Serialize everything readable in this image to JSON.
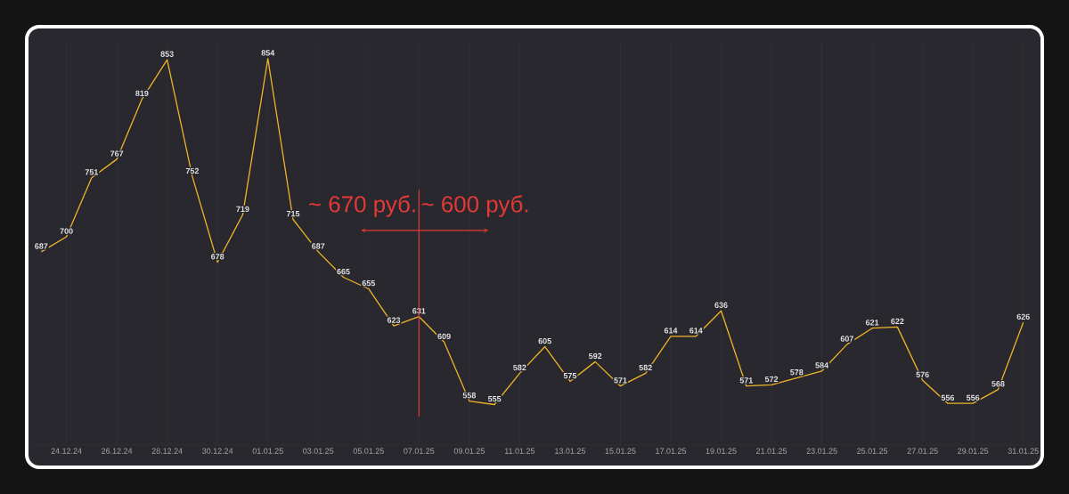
{
  "chart_data": {
    "type": "line",
    "categories": [
      null,
      "24.12.24",
      null,
      "26.12.24",
      null,
      "28.12.24",
      null,
      "30.12.24",
      null,
      "01.01.25",
      null,
      "03.01.25",
      null,
      "05.01.25",
      null,
      "07.01.25",
      null,
      "09.01.25",
      null,
      "11.01.25",
      null,
      "13.01.25",
      null,
      "15.01.25",
      null,
      "17.01.25",
      null,
      "19.01.25",
      null,
      "21.01.25",
      null,
      "23.01.25",
      null,
      "25.01.25",
      null,
      "27.01.25",
      null,
      "29.01.25",
      null,
      "31.01.25"
    ],
    "series": [
      {
        "color": "#f0b429",
        "values": [
          687,
          700,
          751,
          767,
          819,
          853,
          752,
          678,
          719,
          854,
          715,
          687,
          665,
          655,
          623,
          631,
          609,
          558,
          555,
          582,
          605,
          575,
          592,
          571,
          582,
          614,
          614,
          636,
          571,
          572,
          578,
          584,
          607,
          621,
          622,
          576,
          556,
          556,
          568,
          626
        ]
      }
    ],
    "ylim": [
      520,
      870
    ],
    "tick_labels": "x",
    "grid": true,
    "data_labels": true,
    "ref_lines": [
      {
        "axis": "x",
        "value": "07.01.25",
        "color": "#e53935"
      }
    ],
    "annotations": [
      "~ 670 руб.",
      "~ 600 руб."
    ]
  }
}
